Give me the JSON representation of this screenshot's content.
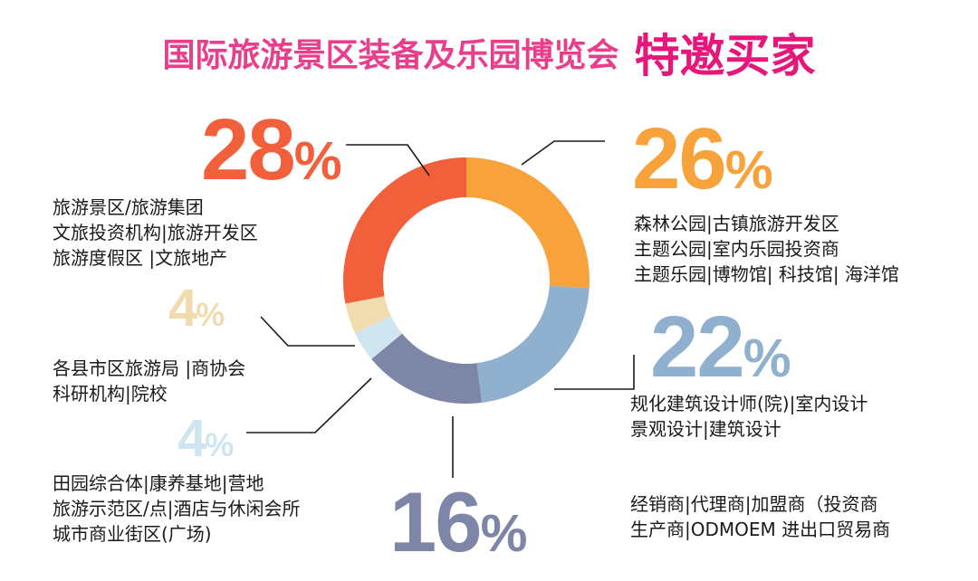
{
  "title": {
    "main": "国际旅游景区装备及乐园博览会",
    "accent": "特邀买家"
  },
  "colors": {
    "title_main": "#e83e8c",
    "title_accent": "#e6177a",
    "leader": "#1a1a1a"
  },
  "chart_data": {
    "type": "pie",
    "donut": true,
    "title": "国际旅游景区装备及乐园博览会 特邀买家",
    "slices": [
      {
        "value": 26,
        "label": "26%",
        "color": "#f7a23b",
        "lines": [
          "森林公园|古镇旅游开发区",
          "主题公园|室内乐园投资商",
          "主题乐园|博物馆| 科技馆| 海洋馆"
        ]
      },
      {
        "value": 22,
        "label": "22%",
        "color": "#8fb0cf",
        "lines": [
          "规化建筑设计师(院)|室内设计",
          "景观设计|建筑设计"
        ]
      },
      {
        "value": 16,
        "label": "16%",
        "color": "#7e86a8",
        "lines": [
          "经销商|代理商|加盟商（投资商",
          "生产商|ODMOEM 进出口贸易商"
        ]
      },
      {
        "value": 4,
        "label": "4%",
        "color": "#cfe5f0",
        "lines": [
          "田园综合体|康养基地|营地",
          "旅游示范区/点|酒店与休闲会所",
          "城市商业街区(广场)"
        ]
      },
      {
        "value": 4,
        "label": "4%",
        "color": "#f0dcae",
        "lines": [
          "各县市区旅游局 |商协会",
          "科研机构|院校"
        ]
      },
      {
        "value": 28,
        "label": "28%",
        "color": "#f2603b",
        "lines": [
          "旅游景区/旅游集团",
          "文旅投资机构|旅游开发区",
          "旅游度假区 |文旅地产"
        ]
      }
    ]
  }
}
